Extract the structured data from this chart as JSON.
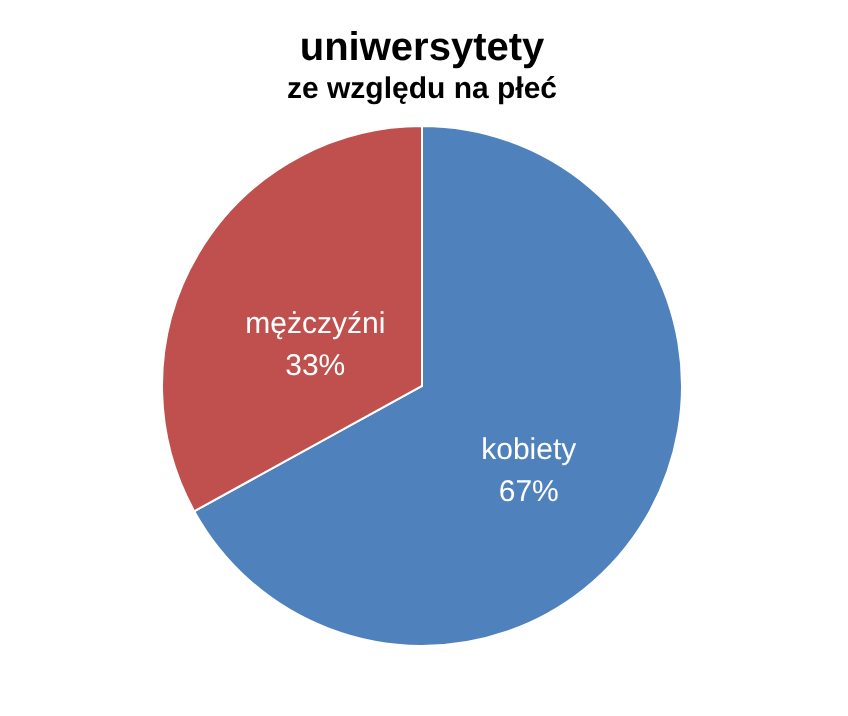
{
  "chart_data": {
    "type": "pie",
    "title": "uniwersytety",
    "subtitle": "ze względu na płeć",
    "categories": [
      "kobiety",
      "mężczyźni"
    ],
    "values": [
      67,
      33
    ],
    "colors": [
      "#4f81bd",
      "#c0504d"
    ],
    "value_labels": [
      "67%",
      "33%"
    ],
    "legend": false
  }
}
